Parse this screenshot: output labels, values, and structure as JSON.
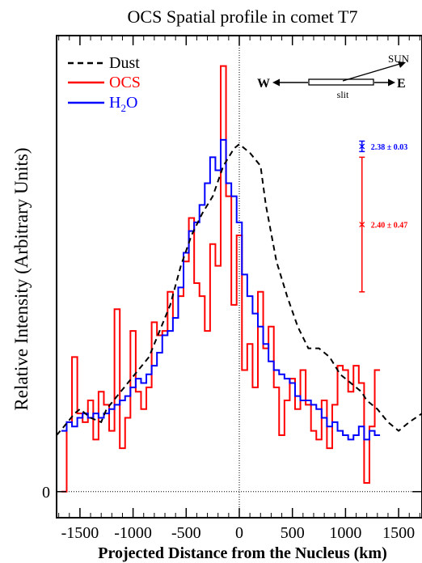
{
  "chart_data": {
    "type": "line",
    "title": "OCS Spatial profile in comet T7",
    "xlabel": "Projected Distance from the Nucleus (km)",
    "ylabel": "Relative Intensity (Arbitrary Units)",
    "xlim": [
      -1720,
      1720
    ],
    "ylim": [
      -0.06,
      1.05
    ],
    "xticks": [
      -1500,
      -1000,
      -500,
      0,
      500,
      1000,
      1500
    ],
    "xtick_labels": [
      "-1500",
      "-1000",
      "-500",
      "0",
      "500",
      "1000",
      "1500"
    ],
    "yticks": [
      0
    ],
    "ytick_labels": [
      "0"
    ],
    "reference_lines": {
      "x": 0,
      "y": 0
    },
    "bin_width": 50,
    "bin_start": -1650,
    "legend": {
      "position": "top-left",
      "entries": [
        {
          "label": "Dust",
          "color": "#000000",
          "style": "dashed"
        },
        {
          "label": "OCS",
          "color": "#ff0000",
          "style": "solid"
        },
        {
          "label_main": "H",
          "label_sub": "2",
          "label_tail": "O",
          "color": "#0000ff",
          "style": "solid"
        }
      ]
    },
    "series": [
      {
        "name": "OCS",
        "color": "#ff0000",
        "style": "step",
        "values": [
          0.0,
          0.16,
          0.31,
          0.18,
          0.16,
          0.21,
          0.12,
          0.23,
          0.2,
          0.14,
          0.42,
          0.1,
          0.17,
          0.37,
          0.23,
          0.19,
          0.24,
          0.39,
          0.36,
          0.37,
          0.46,
          0.4,
          0.45,
          0.53,
          0.63,
          0.48,
          0.45,
          0.37,
          0.57,
          0.52,
          0.98,
          0.68,
          0.43,
          0.59,
          0.28,
          0.34,
          0.24,
          0.46,
          0.33,
          0.38,
          0.24,
          0.13,
          0.21,
          0.26,
          0.19,
          0.28,
          0.2,
          0.14,
          0.12,
          0.21,
          0.1,
          0.2,
          0.29,
          0.28,
          0.23,
          0.29,
          0.25,
          0.02,
          0.15,
          0.28
        ]
      },
      {
        "name": "H2O",
        "color": "#0000ff",
        "style": "step",
        "values": [
          0.14,
          0.16,
          0.15,
          0.17,
          0.18,
          0.17,
          0.18,
          0.17,
          0.18,
          0.19,
          0.2,
          0.21,
          0.22,
          0.24,
          0.26,
          0.25,
          0.27,
          0.29,
          0.32,
          0.36,
          0.37,
          0.4,
          0.47,
          0.55,
          0.6,
          0.62,
          0.66,
          0.71,
          0.77,
          0.74,
          0.81,
          0.71,
          0.68,
          0.62,
          0.5,
          0.45,
          0.41,
          0.38,
          0.34,
          0.3,
          0.28,
          0.27,
          0.26,
          0.25,
          0.22,
          0.21,
          0.21,
          0.2,
          0.19,
          0.17,
          0.15,
          0.16,
          0.14,
          0.13,
          0.12,
          0.13,
          0.15,
          0.12,
          0.14,
          0.13
        ]
      },
      {
        "name": "Dust",
        "color": "#000000",
        "style": "dashed",
        "x": [
          -1720,
          -1650,
          -1550,
          -1500,
          -1400,
          -1300,
          -1250,
          -1150,
          -1050,
          -950,
          -850,
          -750,
          -650,
          -550,
          -450,
          -350,
          -250,
          -150,
          -50,
          0,
          100,
          200,
          250,
          350,
          450,
          550,
          650,
          750,
          850,
          950,
          1050,
          1150,
          1200,
          1300,
          1400,
          1500,
          1600,
          1720
        ],
        "values": [
          0.13,
          0.15,
          0.18,
          0.19,
          0.17,
          0.16,
          0.19,
          0.22,
          0.25,
          0.28,
          0.31,
          0.37,
          0.43,
          0.52,
          0.59,
          0.64,
          0.68,
          0.75,
          0.79,
          0.8,
          0.78,
          0.75,
          0.66,
          0.53,
          0.45,
          0.38,
          0.33,
          0.33,
          0.31,
          0.27,
          0.25,
          0.23,
          0.21,
          0.19,
          0.16,
          0.14,
          0.16,
          0.18
        ]
      }
    ],
    "error_bars": [
      {
        "label": "2.38 ± 0.03",
        "color": "#0000ff",
        "x": 1155,
        "y": 0.795,
        "err": 0.012
      },
      {
        "label": "2.40 ± 0.47",
        "color": "#ff0000",
        "x": 1155,
        "y": 0.615,
        "err": 0.155
      }
    ],
    "inset": {
      "west": "W",
      "east": "E",
      "slit": "slit",
      "sun": "SUN"
    }
  }
}
